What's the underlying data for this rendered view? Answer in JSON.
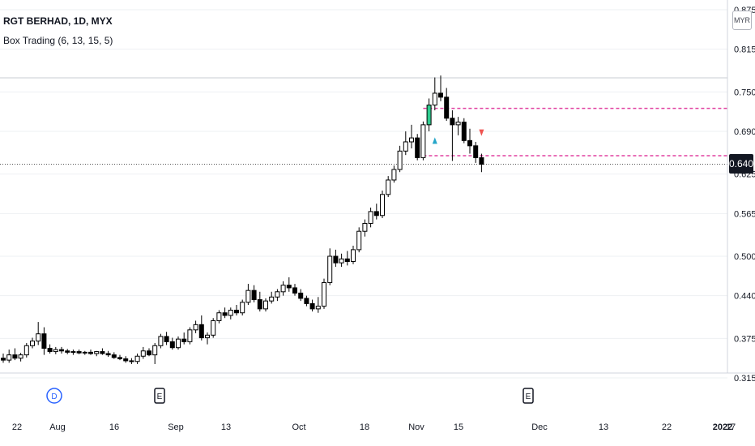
{
  "header": {
    "symbol": "RGT BERHAD, 1D, MYX",
    "indicator": "Box Trading (6, 13, 15, 5)",
    "currency": "MYR"
  },
  "price_axis": {
    "ticks": [
      "0.875",
      "0.815",
      "0.750",
      "0.690",
      "0.625",
      "0.565",
      "0.500",
      "0.440",
      "0.375",
      "0.315"
    ],
    "current_price": "0.640"
  },
  "time_axis": {
    "ticks": [
      "22",
      "Aug",
      "16",
      "Sep",
      "13",
      "Oct",
      "18",
      "Nov",
      "15",
      "Dec",
      "13",
      "22",
      "2022",
      "17"
    ]
  },
  "events": [
    {
      "label": "D",
      "type": "dividend",
      "color": "#2962ff"
    },
    {
      "label": "E",
      "type": "earnings",
      "color": "#131722"
    },
    {
      "label": "E",
      "type": "earnings",
      "color": "#131722"
    }
  ],
  "colors": {
    "up_candle": "#ffffff",
    "down_candle": "#000000",
    "highlight_candle": "#2ecc8f",
    "box_line": "#e040a0",
    "buy_arrow": "#26a6c9",
    "sell_arrow": "#ef5350"
  },
  "chart_data": {
    "type": "candlestick",
    "title": "RGT BERHAD, 1D, MYX",
    "ylim": [
      0.3,
      0.9
    ],
    "box_levels": [
      0.725,
      0.653
    ],
    "candles": [
      [
        0.345,
        0.352,
        0.338,
        0.342
      ],
      [
        0.342,
        0.358,
        0.338,
        0.35
      ],
      [
        0.35,
        0.36,
        0.342,
        0.345
      ],
      [
        0.345,
        0.353,
        0.34,
        0.35
      ],
      [
        0.35,
        0.368,
        0.346,
        0.364
      ],
      [
        0.364,
        0.376,
        0.36,
        0.371
      ],
      [
        0.371,
        0.4,
        0.365,
        0.382
      ],
      [
        0.382,
        0.392,
        0.35,
        0.36
      ],
      [
        0.36,
        0.366,
        0.352,
        0.355
      ],
      [
        0.355,
        0.362,
        0.351,
        0.358
      ],
      [
        0.358,
        0.362,
        0.352,
        0.356
      ],
      [
        0.356,
        0.359,
        0.351,
        0.354
      ],
      [
        0.354,
        0.358,
        0.35,
        0.355
      ],
      [
        0.355,
        0.358,
        0.351,
        0.353
      ],
      [
        0.353,
        0.356,
        0.35,
        0.354
      ],
      [
        0.354,
        0.358,
        0.35,
        0.352
      ],
      [
        0.352,
        0.356,
        0.348,
        0.355
      ],
      [
        0.355,
        0.36,
        0.35,
        0.352
      ],
      [
        0.352,
        0.356,
        0.347,
        0.35
      ],
      [
        0.35,
        0.354,
        0.344,
        0.346
      ],
      [
        0.346,
        0.35,
        0.342,
        0.344
      ],
      [
        0.344,
        0.348,
        0.338,
        0.341
      ],
      [
        0.341,
        0.345,
        0.336,
        0.34
      ],
      [
        0.34,
        0.352,
        0.336,
        0.348
      ],
      [
        0.348,
        0.362,
        0.344,
        0.356
      ],
      [
        0.356,
        0.36,
        0.348,
        0.35
      ],
      [
        0.35,
        0.368,
        0.336,
        0.364
      ],
      [
        0.364,
        0.382,
        0.36,
        0.378
      ],
      [
        0.378,
        0.385,
        0.365,
        0.37
      ],
      [
        0.37,
        0.376,
        0.358,
        0.361
      ],
      [
        0.361,
        0.378,
        0.358,
        0.374
      ],
      [
        0.374,
        0.384,
        0.366,
        0.37
      ],
      [
        0.37,
        0.392,
        0.366,
        0.388
      ],
      [
        0.388,
        0.402,
        0.383,
        0.396
      ],
      [
        0.396,
        0.41,
        0.372,
        0.376
      ],
      [
        0.376,
        0.384,
        0.366,
        0.38
      ],
      [
        0.38,
        0.406,
        0.376,
        0.402
      ],
      [
        0.402,
        0.418,
        0.398,
        0.414
      ],
      [
        0.414,
        0.422,
        0.406,
        0.41
      ],
      [
        0.41,
        0.422,
        0.404,
        0.418
      ],
      [
        0.418,
        0.426,
        0.41,
        0.414
      ],
      [
        0.414,
        0.434,
        0.41,
        0.43
      ],
      [
        0.43,
        0.458,
        0.426,
        0.448
      ],
      [
        0.448,
        0.456,
        0.43,
        0.434
      ],
      [
        0.434,
        0.446,
        0.416,
        0.42
      ],
      [
        0.42,
        0.436,
        0.416,
        0.432
      ],
      [
        0.432,
        0.446,
        0.428,
        0.438
      ],
      [
        0.438,
        0.45,
        0.432,
        0.446
      ],
      [
        0.446,
        0.462,
        0.44,
        0.456
      ],
      [
        0.456,
        0.468,
        0.446,
        0.452
      ],
      [
        0.452,
        0.458,
        0.44,
        0.444
      ],
      [
        0.444,
        0.45,
        0.432,
        0.436
      ],
      [
        0.436,
        0.44,
        0.424,
        0.428
      ],
      [
        0.428,
        0.434,
        0.416,
        0.42
      ],
      [
        0.42,
        0.438,
        0.414,
        0.424
      ],
      [
        0.424,
        0.466,
        0.42,
        0.46
      ],
      [
        0.46,
        0.512,
        0.456,
        0.5
      ],
      [
        0.5,
        0.51,
        0.484,
        0.49
      ],
      [
        0.49,
        0.504,
        0.484,
        0.496
      ],
      [
        0.496,
        0.508,
        0.486,
        0.492
      ],
      [
        0.492,
        0.516,
        0.488,
        0.51
      ],
      [
        0.51,
        0.544,
        0.506,
        0.538
      ],
      [
        0.538,
        0.556,
        0.53,
        0.55
      ],
      [
        0.55,
        0.574,
        0.544,
        0.568
      ],
      [
        0.568,
        0.58,
        0.556,
        0.562
      ],
      [
        0.562,
        0.6,
        0.558,
        0.594
      ],
      [
        0.594,
        0.622,
        0.59,
        0.616
      ],
      [
        0.616,
        0.638,
        0.612,
        0.632
      ],
      [
        0.632,
        0.668,
        0.628,
        0.66
      ],
      [
        0.66,
        0.69,
        0.654,
        0.674
      ],
      [
        0.674,
        0.7,
        0.664,
        0.68
      ],
      [
        0.68,
        0.686,
        0.646,
        0.65
      ],
      [
        0.65,
        0.705,
        0.646,
        0.7
      ],
      [
        0.7,
        0.74,
        0.69,
        0.73
      ],
      [
        0.73,
        0.772,
        0.722,
        0.748
      ],
      [
        0.748,
        0.775,
        0.736,
        0.742
      ],
      [
        0.742,
        0.756,
        0.706,
        0.71
      ],
      [
        0.71,
        0.722,
        0.645,
        0.7
      ],
      [
        0.7,
        0.712,
        0.684,
        0.704
      ],
      [
        0.704,
        0.71,
        0.672,
        0.676
      ],
      [
        0.676,
        0.694,
        0.656,
        0.668
      ],
      [
        0.668,
        0.674,
        0.642,
        0.65
      ],
      [
        0.65,
        0.656,
        0.628,
        0.64
      ]
    ],
    "highlight_index": 73,
    "buy_signal_index": 73,
    "sell_signal_index": 81
  }
}
